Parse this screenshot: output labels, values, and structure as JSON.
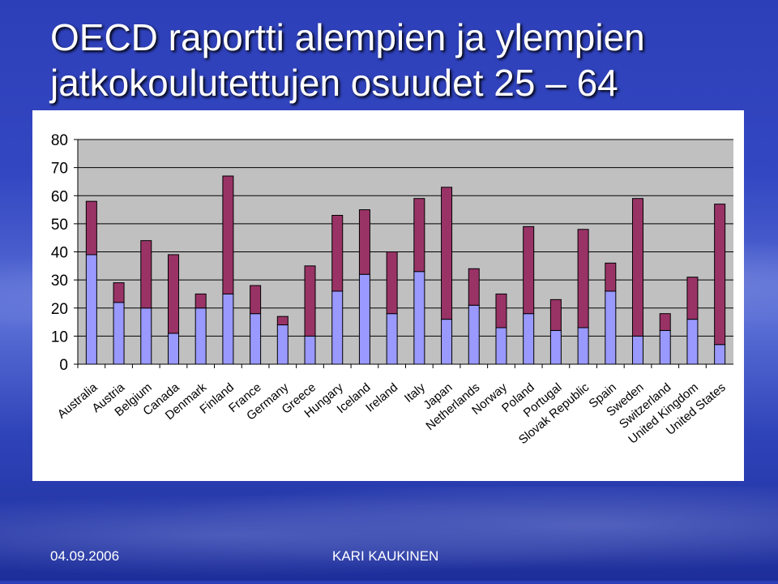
{
  "slide": {
    "title": "OECD raportti alempien ja ylempien jatkokoulutettujen osuudet 25 – 64",
    "date": "04.09.2006",
    "author": "KARI KAUKINEN"
  },
  "colors": {
    "lower_series": "#9999ff",
    "upper_series": "#993366",
    "plot_background": "#c0c0c0",
    "gridline": "#000000"
  },
  "chart_data": {
    "type": "bar",
    "stacked": true,
    "categories": [
      "Australia",
      "Austria",
      "Belgium",
      "Canada",
      "Denmark",
      "Finland",
      "France",
      "Germany",
      "Greece",
      "Hungary",
      "Iceland",
      "Ireland",
      "Italy",
      "Japan",
      "Netherlands",
      "Norway",
      "Poland",
      "Portugal",
      "Slovak Republic",
      "Spain",
      "Sweden",
      "Switzerland",
      "United Kingdom",
      "United States"
    ],
    "series": [
      {
        "values": [
          39,
          22,
          20,
          11,
          20,
          25,
          18,
          14,
          10,
          26,
          32,
          18,
          33,
          16,
          21,
          13,
          18,
          12,
          13,
          26,
          10,
          12,
          16,
          7
        ]
      },
      {
        "values": [
          19,
          7,
          24,
          28,
          5,
          42,
          10,
          3,
          25,
          27,
          23,
          22,
          26,
          47,
          13,
          12,
          31,
          11,
          35,
          10,
          49,
          6,
          15,
          50
        ]
      }
    ],
    "yticks": [
      0,
      10,
      20,
      30,
      40,
      50,
      60,
      70,
      80
    ],
    "ylim": [
      0,
      80
    ],
    "grid": true,
    "legend": "none"
  }
}
